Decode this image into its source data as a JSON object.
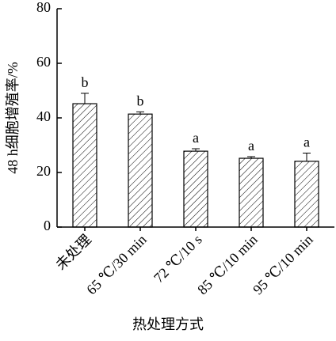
{
  "chart_data": {
    "type": "bar",
    "x_label": "热处理方式",
    "y_label": "48 h细胞增殖率/%",
    "categories": [
      "未处理",
      "65 ℃/30 min",
      "72 ℃/10 s",
      "85 ℃/10 min",
      "95 ℃/10 min"
    ],
    "values": [
      45.2,
      41.4,
      27.8,
      25.2,
      24.1
    ],
    "errors": [
      3.8,
      0.8,
      0.9,
      0.6,
      3.0
    ],
    "letters": [
      "b",
      "b",
      "a",
      "a",
      "a"
    ],
    "color": "#000000",
    "ylim": [
      0,
      80
    ],
    "yticks": [
      0,
      20,
      40,
      60,
      80
    ],
    "grid": false
  }
}
